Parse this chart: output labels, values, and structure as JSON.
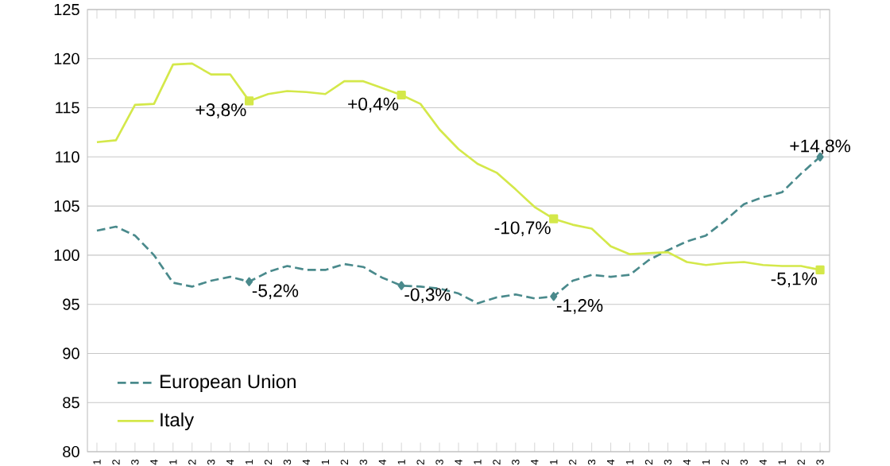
{
  "chart_data": {
    "type": "line",
    "categories": [
      "1",
      "2",
      "3",
      "4",
      "1",
      "2",
      "3",
      "4",
      "1",
      "2",
      "3",
      "4",
      "1",
      "2",
      "3",
      "4",
      "1",
      "2",
      "3",
      "4",
      "1",
      "2",
      "3",
      "4",
      "1",
      "2",
      "3",
      "4",
      "1",
      "2",
      "3",
      "4",
      "1",
      "2",
      "3",
      "4",
      "1",
      "2",
      "3"
    ],
    "series": [
      {
        "name": "European Union",
        "color": "#4a8a8c",
        "line_style": "dashed",
        "values": [
          102.5,
          102.9,
          102.0,
          100.0,
          97.2,
          96.8,
          97.4,
          97.8,
          97.3,
          98.3,
          98.9,
          98.5,
          98.5,
          99.1,
          98.8,
          97.7,
          96.9,
          96.8,
          96.6,
          96.1,
          95.1,
          95.7,
          96.0,
          95.6,
          95.8,
          97.4,
          98.0,
          97.8,
          98.0,
          99.5,
          100.5,
          101.4,
          102.0,
          103.5,
          105.2,
          105.9,
          106.4,
          108.3,
          110.0
        ]
      },
      {
        "name": "Italy",
        "color": "#d4e84a",
        "line_style": "solid",
        "values": [
          111.5,
          111.7,
          115.3,
          115.4,
          119.4,
          119.5,
          118.4,
          118.4,
          115.7,
          116.4,
          116.7,
          116.6,
          116.4,
          117.7,
          117.7,
          117.0,
          116.3,
          115.4,
          112.8,
          110.8,
          109.3,
          108.4,
          106.7,
          104.9,
          103.7,
          103.1,
          102.7,
          100.9,
          100.1,
          100.2,
          100.3,
          99.3,
          99.0,
          99.2,
          99.3,
          99.0,
          98.9,
          98.9,
          98.5
        ]
      }
    ],
    "annotations": [
      "-5,2%",
      "-0,3%",
      "-1,2%",
      "+14,8%",
      "+3,8%",
      "+0,4%",
      "-10,7%",
      "-5,1%"
    ],
    "ylim": [
      80,
      125
    ],
    "yticks": [
      80,
      85,
      90,
      95,
      100,
      105,
      110,
      115,
      120,
      125
    ],
    "grid": "y",
    "legend": "bottom left"
  }
}
